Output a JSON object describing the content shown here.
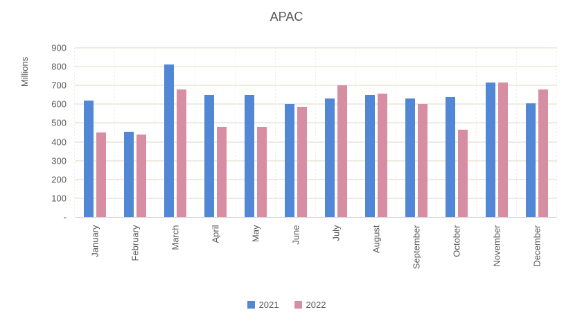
{
  "title": "APAC",
  "y_axis": {
    "label": "Millions",
    "ticks": [
      "900",
      "800",
      "700",
      "600",
      "500",
      "400",
      "300",
      "200",
      "100",
      "-"
    ],
    "max": 900,
    "min": 0,
    "step": 100
  },
  "colors": {
    "series_2021": "#5287D5",
    "series_2022": "#D88EA2",
    "text": "#595959",
    "gridline": "#EFEBE1",
    "axis_line": "#D6D6D6"
  },
  "chart_data": {
    "type": "bar",
    "title": "APAC",
    "ylabel": "Millions",
    "ylim": [
      0,
      900
    ],
    "y_step": 100,
    "grid": true,
    "legend_position": "bottom",
    "categories": [
      "January",
      "February",
      "March",
      "April",
      "May",
      "June",
      "July",
      "August",
      "September",
      "October",
      "November",
      "December"
    ],
    "series": [
      {
        "name": "2021",
        "color": "#5287D5",
        "values": [
          620,
          455,
          810,
          650,
          650,
          600,
          630,
          650,
          630,
          640,
          715,
          605
        ]
      },
      {
        "name": "2022",
        "color": "#D88EA2",
        "values": [
          450,
          440,
          680,
          480,
          480,
          585,
          700,
          655,
          600,
          465,
          715,
          680
        ]
      }
    ]
  }
}
